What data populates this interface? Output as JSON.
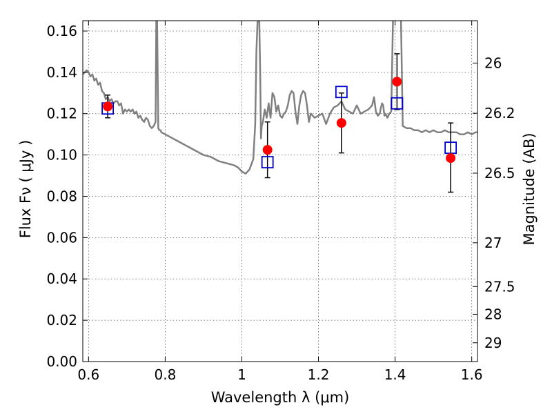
{
  "chart_data": {
    "type": "scatter",
    "xlabel": "Wavelength  λ (μm)",
    "ylabel": "Flux  Fν  ( μJy )",
    "ylabel_right": "Magnitude (AB)",
    "xlim": [
      0.585,
      1.615
    ],
    "ylim": [
      0.0,
      0.165
    ],
    "grid": true,
    "x_ticks": [
      0.6,
      0.8,
      1.0,
      1.2,
      1.4,
      1.6
    ],
    "x_tick_labels": [
      "0.6",
      "0.8",
      "1",
      "1.2",
      "1.4",
      "1.6"
    ],
    "y_ticks": [
      0.0,
      0.02,
      0.04,
      0.06,
      0.08,
      0.1,
      0.12,
      0.14,
      0.16
    ],
    "y_tick_labels": [
      "0.00",
      "0.02",
      "0.04",
      "0.06",
      "0.08",
      "0.10",
      "0.12",
      "0.14",
      "0.16"
    ],
    "right_ticks": [
      {
        "label": "26",
        "flux": 0.1445
      },
      {
        "label": "26.2",
        "flux": 0.1202
      },
      {
        "label": "26.5",
        "flux": 0.0912
      },
      {
        "label": "27",
        "flux": 0.0575
      },
      {
        "label": "27.5",
        "flux": 0.0363
      },
      {
        "label": "28",
        "flux": 0.0229
      },
      {
        "label": "29",
        "flux": 0.0091
      }
    ],
    "series": [
      {
        "kind": "line",
        "color": "#808080",
        "x": [
          0.585,
          0.59,
          0.595,
          0.6,
          0.605,
          0.61,
          0.615,
          0.62,
          0.625,
          0.63,
          0.635,
          0.64,
          0.645,
          0.65,
          0.655,
          0.66,
          0.665,
          0.67,
          0.675,
          0.68,
          0.685,
          0.69,
          0.695,
          0.7,
          0.705,
          0.71,
          0.715,
          0.72,
          0.725,
          0.73,
          0.735,
          0.74,
          0.745,
          0.75,
          0.755,
          0.76,
          0.765,
          0.77,
          0.775,
          0.777,
          0.779,
          0.782,
          0.785,
          0.788,
          0.79,
          0.8,
          0.82,
          0.84,
          0.86,
          0.88,
          0.9,
          0.92,
          0.94,
          0.96,
          0.98,
          0.99,
          1.0,
          1.01,
          1.02,
          1.03,
          1.035,
          1.038,
          1.042,
          1.045,
          1.048,
          1.05,
          1.052,
          1.055,
          1.06,
          1.065,
          1.07,
          1.075,
          1.08,
          1.085,
          1.09,
          1.095,
          1.1,
          1.105,
          1.11,
          1.115,
          1.12,
          1.125,
          1.13,
          1.135,
          1.14,
          1.145,
          1.15,
          1.155,
          1.16,
          1.165,
          1.17,
          1.175,
          1.18,
          1.19,
          1.2,
          1.21,
          1.22,
          1.23,
          1.24,
          1.25,
          1.26,
          1.27,
          1.28,
          1.29,
          1.3,
          1.31,
          1.32,
          1.33,
          1.34,
          1.345,
          1.35,
          1.355,
          1.36,
          1.363,
          1.366,
          1.369,
          1.372,
          1.375,
          1.38,
          1.385,
          1.39,
          1.395,
          1.4,
          1.405,
          1.41,
          1.415,
          1.42,
          1.43,
          1.44,
          1.45,
          1.46,
          1.47,
          1.48,
          1.49,
          1.5,
          1.51,
          1.52,
          1.53,
          1.54,
          1.55,
          1.56,
          1.57,
          1.58,
          1.59,
          1.6,
          1.61,
          1.615
        ],
        "y": [
          0.139,
          0.14,
          0.141,
          0.14,
          0.138,
          0.139,
          0.136,
          0.137,
          0.134,
          0.135,
          0.131,
          0.13,
          0.127,
          0.128,
          0.126,
          0.127,
          0.125,
          0.126,
          0.126,
          0.124,
          0.125,
          0.12,
          0.122,
          0.121,
          0.122,
          0.121,
          0.122,
          0.12,
          0.121,
          0.118,
          0.119,
          0.117,
          0.116,
          0.118,
          0.117,
          0.114,
          0.113,
          0.114,
          0.116,
          0.17,
          0.165,
          0.113,
          0.112,
          0.112,
          0.111,
          0.11,
          0.108,
          0.106,
          0.104,
          0.102,
          0.1,
          0.099,
          0.097,
          0.096,
          0.095,
          0.094,
          0.092,
          0.091,
          0.093,
          0.098,
          0.115,
          0.15,
          0.17,
          0.17,
          0.14,
          0.108,
          0.114,
          0.116,
          0.122,
          0.118,
          0.125,
          0.118,
          0.13,
          0.128,
          0.121,
          0.124,
          0.119,
          0.118,
          0.12,
          0.121,
          0.124,
          0.129,
          0.131,
          0.13,
          0.121,
          0.115,
          0.124,
          0.129,
          0.131,
          0.13,
          0.124,
          0.116,
          0.12,
          0.118,
          0.119,
          0.12,
          0.115,
          0.12,
          0.123,
          0.124,
          0.126,
          0.122,
          0.121,
          0.12,
          0.124,
          0.12,
          0.121,
          0.122,
          0.124,
          0.128,
          0.121,
          0.119,
          0.12,
          0.123,
          0.125,
          0.124,
          0.119,
          0.12,
          0.118,
          0.12,
          0.121,
          0.17,
          0.17,
          0.17,
          0.17,
          0.17,
          0.114,
          0.113,
          0.113,
          0.112,
          0.112,
          0.111,
          0.112,
          0.111,
          0.112,
          0.111,
          0.111,
          0.112,
          0.111,
          0.111,
          0.111,
          0.11,
          0.11,
          0.111,
          0.11,
          0.111,
          0.111
        ]
      },
      {
        "kind": "observed",
        "color": "#ff0000",
        "x": [
          0.65,
          1.067,
          1.26,
          1.405,
          1.545
        ],
        "y": [
          0.1235,
          0.1025,
          0.1155,
          0.1355,
          0.0985
        ],
        "yerr_low": [
          0.118,
          0.089,
          0.101,
          0.122,
          0.082
        ],
        "yerr_high": [
          0.129,
          0.116,
          0.13,
          0.149,
          0.1155
        ]
      },
      {
        "kind": "model",
        "color": "#0000cc",
        "x": [
          0.65,
          1.067,
          1.26,
          1.405,
          1.545
        ],
        "y": [
          0.1225,
          0.0965,
          0.1305,
          0.125,
          0.1035
        ]
      }
    ]
  }
}
